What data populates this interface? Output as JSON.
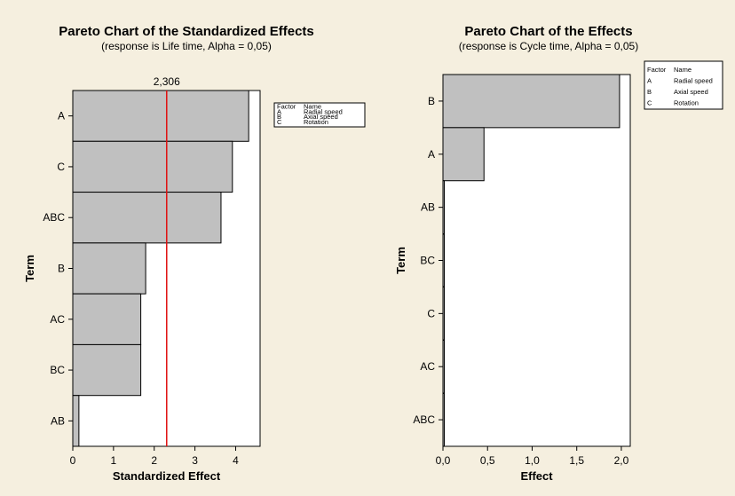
{
  "chart_data": [
    {
      "type": "bar",
      "orientation": "horizontal",
      "title": "Pareto Chart of the Standardized Effects",
      "subtitle": "(response is Life time, Alpha = 0,05)",
      "xlabel": "Standardized Effect",
      "ylabel": "Term",
      "categories": [
        "A",
        "C",
        "ABC",
        "B",
        "AC",
        "BC",
        "AB"
      ],
      "values": [
        4.32,
        3.92,
        3.64,
        1.79,
        1.67,
        1.67,
        0.15
      ],
      "xlim": [
        0,
        4.6
      ],
      "xticks": [
        "0",
        "1",
        "2",
        "3",
        "4"
      ],
      "reference_line": {
        "value": 2.306,
        "label": "2,306",
        "color": "#e01010"
      },
      "bar_color": "#c0c0c0",
      "grid": false,
      "legend": {
        "placement": "top-right",
        "headers": [
          "Factor",
          "Name"
        ],
        "rows": [
          [
            "A",
            "Radial speed"
          ],
          [
            "B",
            "Axial speed"
          ],
          [
            "C",
            "Rotation"
          ]
        ]
      }
    },
    {
      "type": "bar",
      "orientation": "horizontal",
      "title": "Pareto Chart of the Effects",
      "subtitle": "(response is Cycle time, Alpha = 0,05)",
      "xlabel": "Effect",
      "ylabel": "Term",
      "categories": [
        "B",
        "A",
        "AB",
        "BC",
        "C",
        "AC",
        "ABC"
      ],
      "values": [
        1.98,
        0.46,
        0.015,
        0.003,
        0.002,
        0.001,
        0.001
      ],
      "xlim": [
        0,
        2.1
      ],
      "xticks": [
        "0,0",
        "0,5",
        "1,0",
        "1,5",
        "2,0"
      ],
      "bar_color": "#c0c0c0",
      "grid": false,
      "legend": {
        "placement": "top-right",
        "headers": [
          "Factor",
          "Name"
        ],
        "rows": [
          [
            "A",
            "Radial speed"
          ],
          [
            "B",
            "Axial speed"
          ],
          [
            "C",
            "Rotation"
          ]
        ]
      }
    }
  ]
}
